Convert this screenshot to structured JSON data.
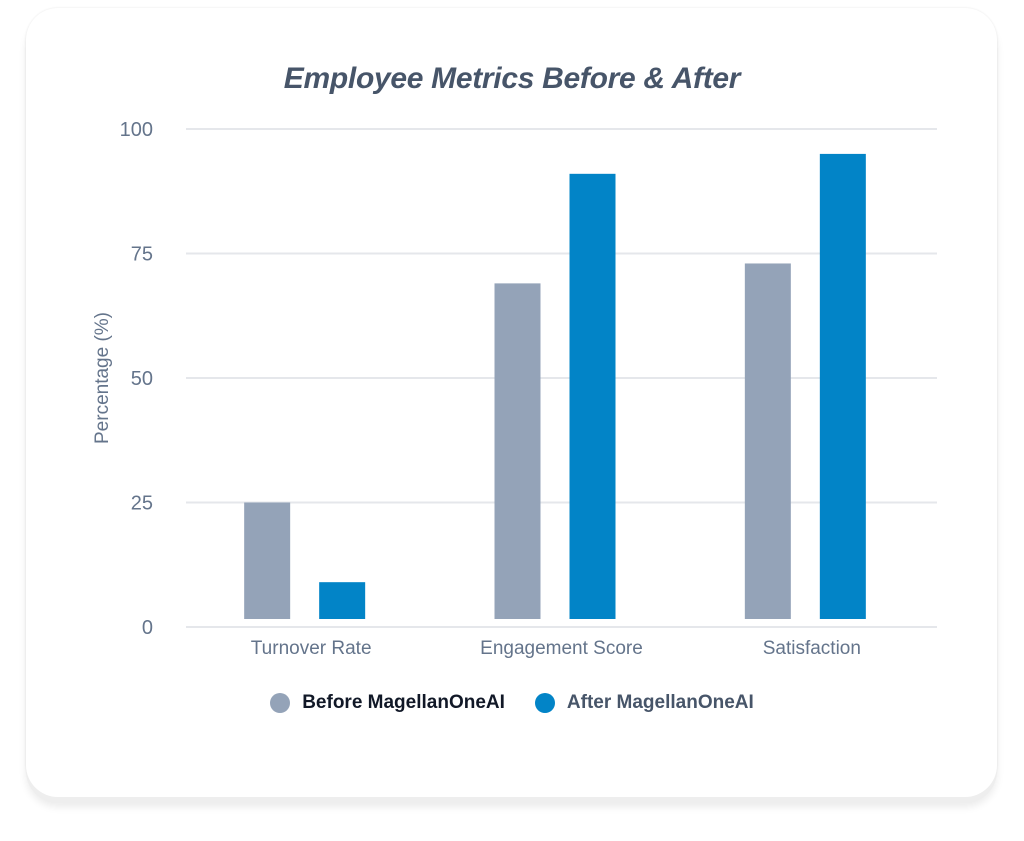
{
  "chart_data": {
    "type": "bar",
    "title": "Employee Metrics Before & After",
    "xlabel": "",
    "ylabel": "Percentage (%)",
    "ylim": [
      0,
      100
    ],
    "yticks": [
      0,
      25,
      50,
      75,
      100
    ],
    "grid": true,
    "legend_position": "bottom",
    "categories": [
      "Turnover Rate",
      "Engagement Score",
      "Satisfaction"
    ],
    "series": [
      {
        "name": "Before MagellanOneAI",
        "color": "#94a3b8",
        "label_color": "#111827",
        "values": [
          25,
          69,
          73
        ]
      },
      {
        "name": "After MagellanOneAI",
        "color": "#0284c7",
        "label_color": "#475569",
        "values": [
          9,
          91,
          95
        ]
      }
    ]
  },
  "colors": {
    "title": "#475569",
    "axis_text": "#64748b",
    "grid": "#e5e7eb"
  }
}
